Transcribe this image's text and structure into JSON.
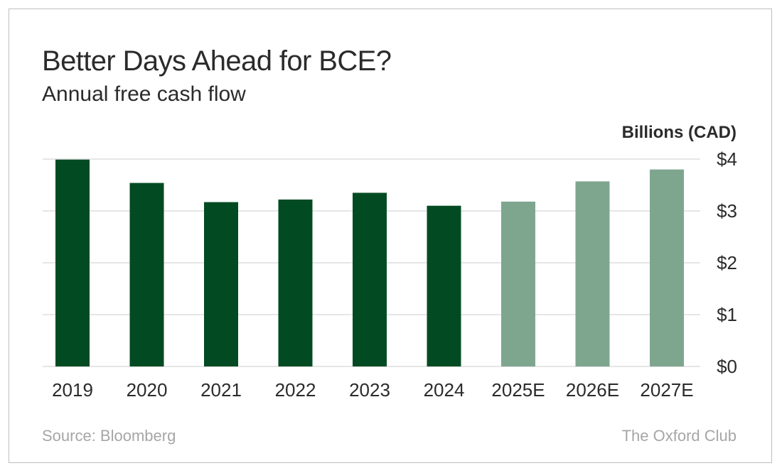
{
  "header": {
    "title": "Better Days Ahead for BCE?",
    "subtitle": "Annual free cash flow",
    "unit_label": "Billions (CAD)"
  },
  "footer": {
    "source": "Source: Bloomberg",
    "brand": "The Oxford Club"
  },
  "colors": {
    "actual": "#024b22",
    "estimate": "#7ea68f",
    "grid": "#cccccc",
    "text": "#2b2b2b"
  },
  "chart_data": {
    "type": "bar",
    "categories": [
      "2019",
      "2020",
      "2021",
      "2022",
      "2023",
      "2024",
      "2025E",
      "2026E",
      "2027E"
    ],
    "values": [
      3.99,
      3.54,
      3.17,
      3.22,
      3.35,
      3.1,
      3.18,
      3.57,
      3.8
    ],
    "estimated": [
      false,
      false,
      false,
      false,
      false,
      false,
      true,
      true,
      true
    ],
    "ylim": [
      0,
      4
    ],
    "yticks": [
      0,
      1,
      2,
      3,
      4
    ],
    "ytick_labels": [
      "$0",
      "$1",
      "$2",
      "$3",
      "$4"
    ],
    "ylabel": "Billions (CAD)",
    "xlabel": "",
    "grid": true,
    "y_axis_side": "right"
  }
}
